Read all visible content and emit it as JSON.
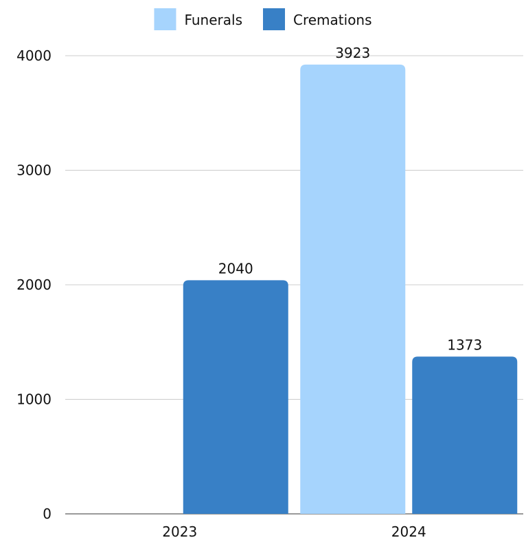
{
  "chart_data": {
    "type": "bar",
    "categories": [
      "2023",
      "2024"
    ],
    "series": [
      {
        "name": "Funerals",
        "values": [
          0,
          3923
        ],
        "labels": [
          "",
          "3923"
        ]
      },
      {
        "name": "Cremations",
        "values": [
          2040,
          1373
        ],
        "labels": [
          "2040",
          "1373"
        ]
      }
    ],
    "ylim": [
      0,
      4000
    ],
    "yticks": [
      0,
      1000,
      2000,
      3000,
      4000
    ],
    "ytick_labels": [
      "0",
      "1000",
      "2000",
      "3000",
      "4000"
    ],
    "grid": true,
    "legend": "top-center",
    "colors": {
      "Funerals": "#a6d4fd",
      "Cremations": "#3880c6"
    }
  }
}
